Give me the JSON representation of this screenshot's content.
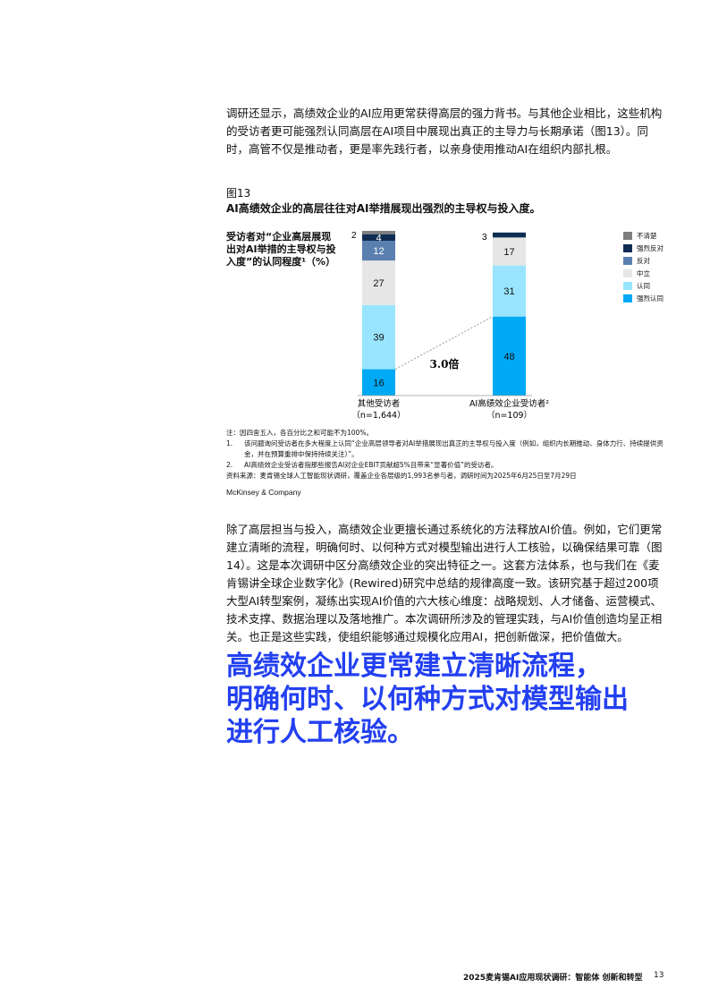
{
  "intro": "调研还显示，高绩效企业的AI应用更常获得高层的强力背书。与其他企业相比，这些机构的受访者更可能强烈认同高层在AI项目中展现出真正的主导力与长期承诺（图13）。同时，高管不仅是推动者，更是率先践行者，以亲身使用推动AI在组织内部扎根。",
  "figure": {
    "number": "图13",
    "title": "AI高绩效企业的高层往往对AI举措展现出强烈的主导权与投入度。"
  },
  "chart_data": {
    "type": "bar",
    "stacked": true,
    "ylabel": "受访者对“企业高层展现出对AI举措的主导权与投入度”的认同程度¹（%）",
    "categories": [
      {
        "name": "其他受访者",
        "n": "（n=1,644）"
      },
      {
        "name": "AI高绩效企业受访者²",
        "n": "（n=109）"
      }
    ],
    "series": [
      {
        "name": "强烈认同",
        "color": "#00a9f4",
        "values": [
          16,
          48
        ]
      },
      {
        "name": "认同",
        "color": "#99e5ff",
        "values": [
          39,
          31
        ]
      },
      {
        "name": "中立",
        "color": "#e6e6e6",
        "values": [
          27,
          17
        ]
      },
      {
        "name": "反对",
        "color": "#5a80b0",
        "values": [
          12,
          0
        ]
      },
      {
        "name": "强烈反对",
        "color": "#0f2d52",
        "values": [
          4,
          3
        ]
      },
      {
        "name": "不清楚",
        "color": "#7f7f7f",
        "values": [
          2,
          0
        ]
      }
    ],
    "legend_order": [
      "不清楚",
      "强烈反对",
      "反对",
      "中立",
      "认同",
      "强烈认同"
    ],
    "legend": "right",
    "annotation": "3.0倍",
    "outside_labels": [
      "2",
      "3"
    ]
  },
  "notes": {
    "note": "注：因四舍五入，各百分比之和可能不为100%。",
    "items": [
      {
        "n": "1.",
        "t": "该问题询问受访者在多大程度上认同“企业高层领导者对AI举措展现出真正的主导权与投入度（例如，组织内长期推动、身体力行、持续提供资金，并在预算重排中保持持续关注）”。"
      },
      {
        "n": "2.",
        "t": "AI高绩效企业受访者指那些报告AI对企业EBIT贡献超5%且带来“显著价值”的受访者。"
      }
    ],
    "source": "资料来源：麦肯锡全球人工智能现状调研，覆盖企业各层级的1,993名参与者，调研时间为2025年6月25日至7月29日"
  },
  "brand": "McKinsey & Company",
  "body2": "除了高层担当与投入，高绩效企业更擅长通过系统化的方法释放AI价值。例如，它们更常建立清晰的流程，明确何时、以何种方式对模型输出进行人工核验，以确保结果可靠（图14）。这是本次调研中区分高绩效企业的突出特征之一。这套方法体系，也与我们在《麦肯锡讲全球企业数字化》(Rewired)研究中总结的规律高度一致。该研究基于超过200项大型AI转型案例，凝练出实现AI价值的六大核心维度：战略规划、人才储备、运营模式、技术支撑、数据治理以及落地推广。本次调研所涉及的管理实践，与AI价值创造均呈正相关。也正是这些实践，使组织能够通过规模化应用AI，把创新做深，把价值做大。",
  "headline": [
    "高绩效企业更常建立清晰流程，",
    "明确何时、以何种方式对模型输出",
    "进行人工核验。"
  ],
  "footer": {
    "title": "2025麦肯锡AI应用现状调研：智能体 创新和转型",
    "page": "13"
  }
}
